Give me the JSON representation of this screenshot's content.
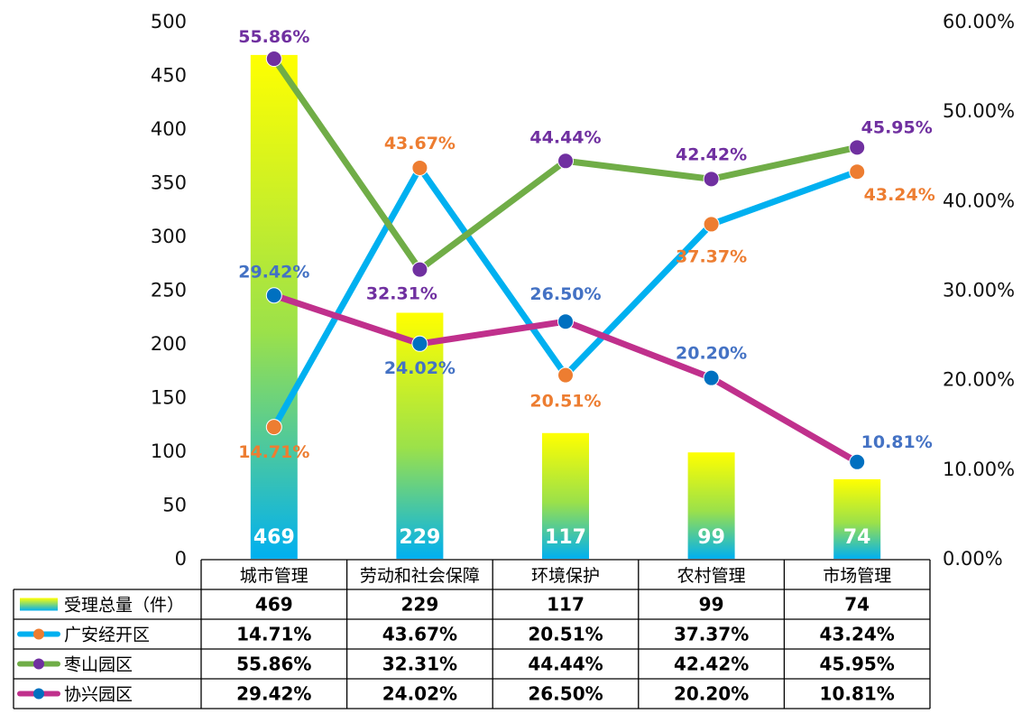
{
  "chart_data": {
    "type": "bar",
    "categories": [
      "城市管理",
      "劳动和社会保障",
      "环境保护",
      "农村管理",
      "市场管理"
    ],
    "left_axis": {
      "ylim": [
        0,
        500
      ],
      "ticks": [
        "0",
        "50",
        "100",
        "150",
        "200",
        "250",
        "300",
        "350",
        "400",
        "450",
        "500"
      ]
    },
    "right_axis": {
      "ylim": [
        0,
        60
      ],
      "ticks": [
        "0.00%",
        "10.00%",
        "20.00%",
        "30.00%",
        "40.00%",
        "50.00%",
        "60.00%"
      ]
    },
    "series": [
      {
        "name": "受理总量（件）",
        "kind": "bar",
        "axis": "left",
        "values": [
          469,
          229,
          117,
          99,
          74
        ],
        "labels": [
          "469",
          "229",
          "117",
          "99",
          "74"
        ],
        "color_top": "#ffff00",
        "color_bottom": "#00b0f0"
      },
      {
        "name": "广安经开区",
        "kind": "line",
        "axis": "right",
        "values": [
          14.71,
          43.67,
          20.51,
          37.37,
          43.24
        ],
        "labels": [
          "14.71%",
          "43.67%",
          "20.51%",
          "37.37%",
          "43.24%"
        ],
        "line_color": "#00b0f0",
        "marker_color": "#ed7d31",
        "label_color": "#ed7d31"
      },
      {
        "name": "枣山园区",
        "kind": "line",
        "axis": "right",
        "values": [
          55.86,
          32.31,
          44.44,
          42.42,
          45.95
        ],
        "labels": [
          "55.86%",
          "32.31%",
          "44.44%",
          "42.42%",
          "45.95%"
        ],
        "line_color": "#70ad47",
        "marker_color": "#7030a0",
        "label_color": "#7030a0"
      },
      {
        "name": "协兴园区",
        "kind": "line",
        "axis": "right",
        "values": [
          29.42,
          24.02,
          26.5,
          20.2,
          10.81
        ],
        "labels": [
          "29.42%",
          "24.02%",
          "26.50%",
          "20.20%",
          "10.81%"
        ],
        "line_color": "#c0308c",
        "marker_color": "#0070c0",
        "label_color": "#4472c4"
      }
    ],
    "data_table": true,
    "legend": "data-table-left"
  }
}
